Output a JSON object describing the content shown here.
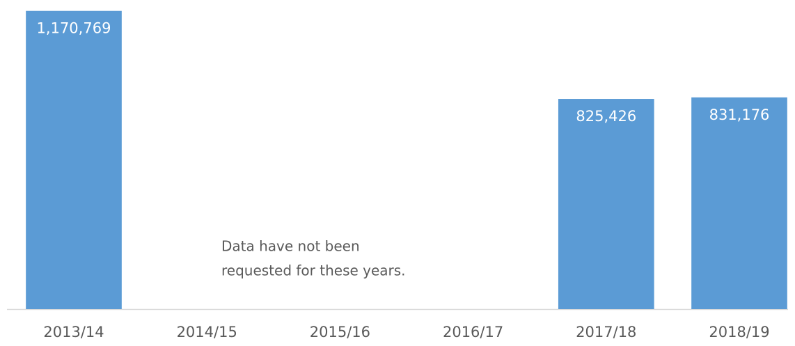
{
  "chart_data": {
    "type": "bar",
    "categories": [
      "2013/14",
      "2014/15",
      "2015/16",
      "2016/17",
      "2017/18",
      "2018/19"
    ],
    "values": [
      1170769,
      null,
      null,
      null,
      825426,
      831176
    ],
    "value_labels": [
      "1,170,769",
      null,
      null,
      null,
      "825,426",
      "831,176"
    ],
    "color": "#5b9bd5",
    "ylim": [
      0,
      1200000
    ],
    "annotation": [
      "Data have not been",
      "requested for these years."
    ]
  }
}
